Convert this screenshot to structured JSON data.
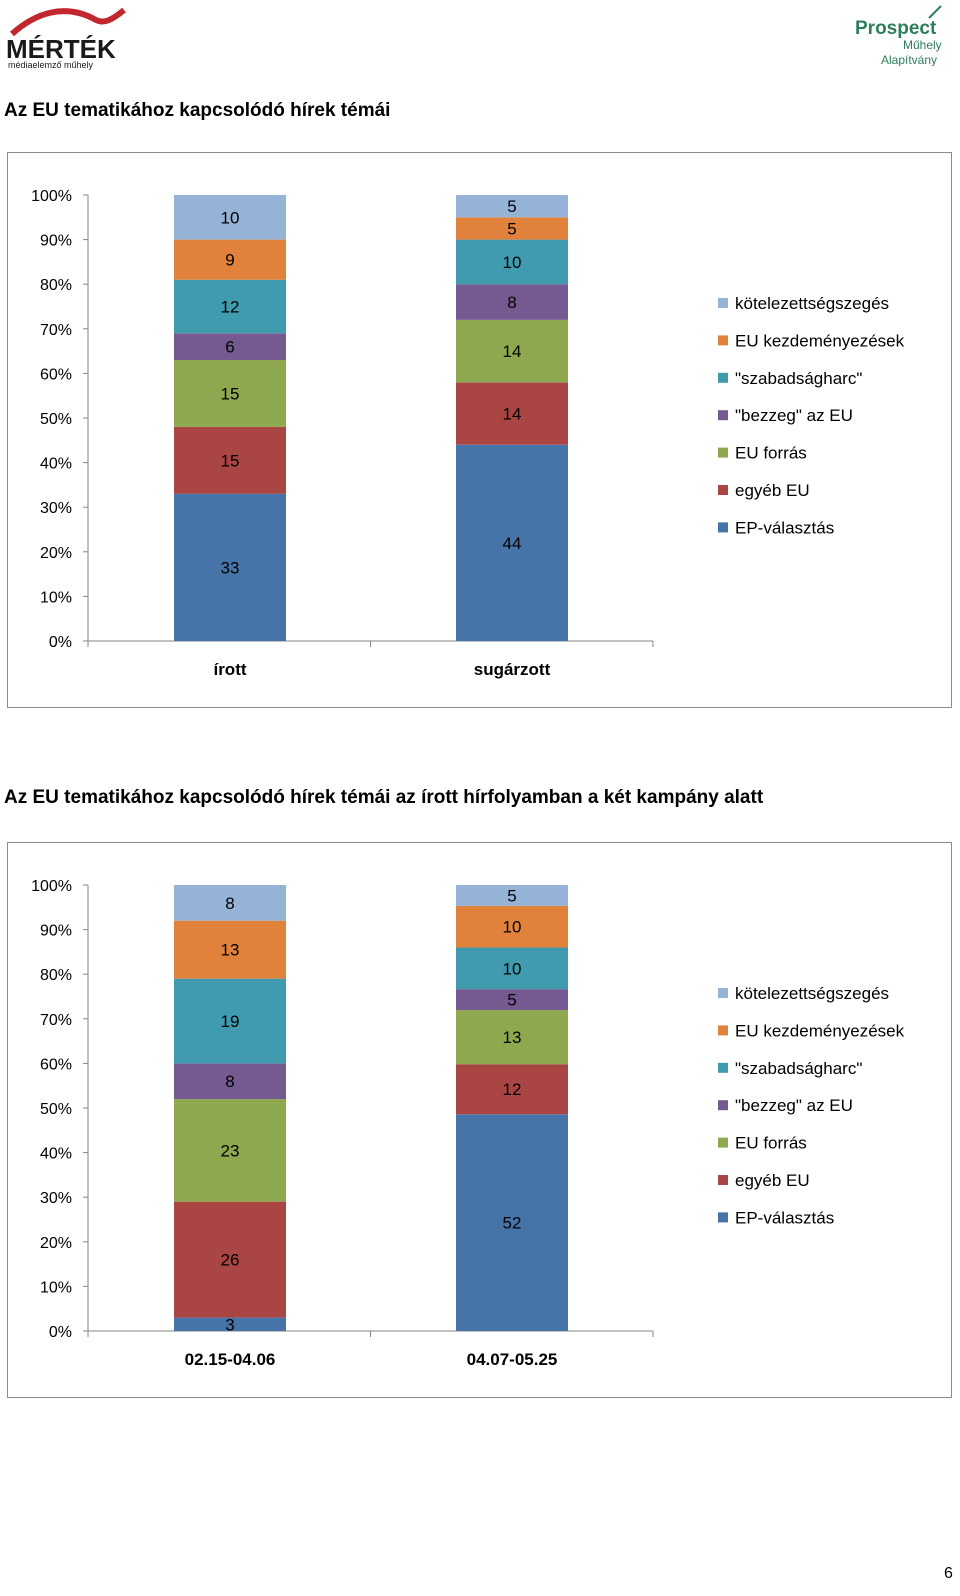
{
  "logos": {
    "left": {
      "main": "MÉRTÉK",
      "sub": "médiaelemző műhely"
    },
    "right": {
      "main": "Prospect",
      "sub1": "Műhely",
      "sub2": "Alapítvány"
    }
  },
  "colors": {
    "kotelezettseg": "#95b3d7",
    "kezdemenyezes": "#e0823c",
    "szabadsagharc": "#3f9bad",
    "bezzeg": "#755a92",
    "forras": "#8ea84f",
    "egyeb": "#a94543",
    "ep": "#4673a8"
  },
  "headings": {
    "chart1": "Az EU tematikához kapcsolódó hírek témái",
    "chart2": "Az EU tematikához kapcsolódó hírek témái az írott hírfolyamban a két kampány alatt"
  },
  "page_number": "6",
  "chart_data": [
    {
      "type": "bar",
      "stacked": "percent",
      "title": "Az EU tematikához kapcsolódó hírek témái",
      "categories": [
        "írott",
        "sugárzott"
      ],
      "yticks": [
        "0%",
        "10%",
        "20%",
        "30%",
        "40%",
        "50%",
        "60%",
        "70%",
        "80%",
        "90%",
        "100%"
      ],
      "ylim": [
        0,
        100
      ],
      "legend_position": "right",
      "series": [
        {
          "name": "EP-választás",
          "color_key": "ep",
          "values": [
            33,
            44
          ]
        },
        {
          "name": "egyéb EU",
          "color_key": "egyeb",
          "values": [
            15,
            14
          ]
        },
        {
          "name": "EU forrás",
          "color_key": "forras",
          "values": [
            15,
            14
          ]
        },
        {
          "name": "\"bezzeg\" az EU",
          "color_key": "bezzeg",
          "values": [
            6,
            8
          ]
        },
        {
          "name": "\"szabadságharc\"",
          "color_key": "szabadsagharc",
          "values": [
            12,
            10
          ]
        },
        {
          "name": "EU kezdeményezések",
          "color_key": "kezdemenyezes",
          "values": [
            9,
            5
          ]
        },
        {
          "name": "kötelezettségszegés",
          "color_key": "kotelezettseg",
          "values": [
            10,
            5
          ]
        }
      ]
    },
    {
      "type": "bar",
      "stacked": "percent",
      "title": "Az EU tematikához kapcsolódó hírek témái az írott hírfolyamban a két kampány alatt",
      "categories": [
        "02.15-04.06",
        "04.07-05.25"
      ],
      "yticks": [
        "0%",
        "10%",
        "20%",
        "30%",
        "40%",
        "50%",
        "60%",
        "70%",
        "80%",
        "90%",
        "100%"
      ],
      "ylim": [
        0,
        100
      ],
      "legend_position": "right",
      "series": [
        {
          "name": "EP-választás",
          "color_key": "ep",
          "values": [
            3,
            52
          ]
        },
        {
          "name": "egyéb EU",
          "color_key": "egyeb",
          "values": [
            26,
            12
          ]
        },
        {
          "name": "EU forrás",
          "color_key": "forras",
          "values": [
            23,
            13
          ]
        },
        {
          "name": "\"bezzeg\" az EU",
          "color_key": "bezzeg",
          "values": [
            8,
            5
          ]
        },
        {
          "name": "\"szabadságharc\"",
          "color_key": "szabadsagharc",
          "values": [
            19,
            10
          ]
        },
        {
          "name": "EU kezdeményezések",
          "color_key": "kezdemenyezes",
          "values": [
            13,
            10
          ]
        },
        {
          "name": "kötelezettségszegés",
          "color_key": "kotelezettseg",
          "values": [
            8,
            5
          ]
        }
      ]
    }
  ]
}
